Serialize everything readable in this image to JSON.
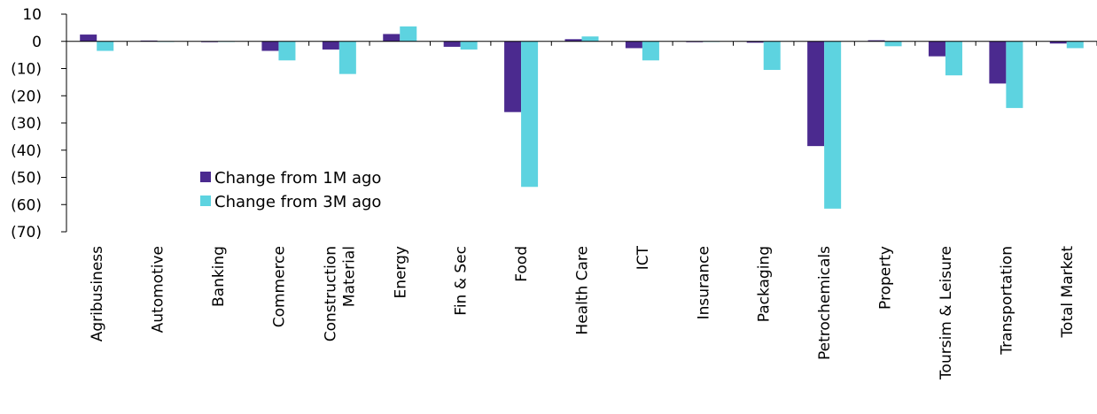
{
  "chart_data": {
    "type": "bar",
    "title": "",
    "xlabel": "",
    "ylabel": "",
    "ylim": [
      -70,
      10
    ],
    "yticks": [
      10,
      0,
      -10,
      -20,
      -30,
      -40,
      -50,
      -60,
      -70
    ],
    "ytick_labels": [
      "10",
      "0",
      "(10)",
      "(20)",
      "(30)",
      "(40)",
      "(50)",
      "(60)",
      "(70)"
    ],
    "grid": false,
    "legend_position": "center-left",
    "categories": [
      [
        "Agribusiness"
      ],
      [
        "Automotive"
      ],
      [
        "Banking"
      ],
      [
        "Commerce"
      ],
      [
        "Construction",
        "Material"
      ],
      [
        "Energy"
      ],
      [
        "Fin & Sec"
      ],
      [
        "Food"
      ],
      [
        "Health Care"
      ],
      [
        "ICT"
      ],
      [
        "Insurance"
      ],
      [
        "Packaging"
      ],
      [
        "Petrochemicals"
      ],
      [
        "Property"
      ],
      [
        "Toursim & Leisure"
      ],
      [
        "Transportation"
      ],
      [
        "Total Market"
      ]
    ],
    "series": [
      {
        "name": "Change from 1M ago",
        "color": "#4b2a8f",
        "values": [
          2.5,
          0.3,
          -0.3,
          -3.5,
          -3,
          2.7,
          -2,
          -26,
          0.8,
          -2.5,
          -0.3,
          -0.5,
          -38.5,
          0.4,
          -5.5,
          -15.5,
          -0.8
        ]
      },
      {
        "name": "Change from 3M ago",
        "color": "#5dd3e0",
        "values": [
          -3.5,
          0,
          0,
          -7,
          -12,
          5.5,
          -3,
          -53.5,
          1.8,
          -7,
          0,
          -10.5,
          -61.5,
          -1.8,
          -12.5,
          -24.5,
          -2.5
        ]
      }
    ]
  }
}
